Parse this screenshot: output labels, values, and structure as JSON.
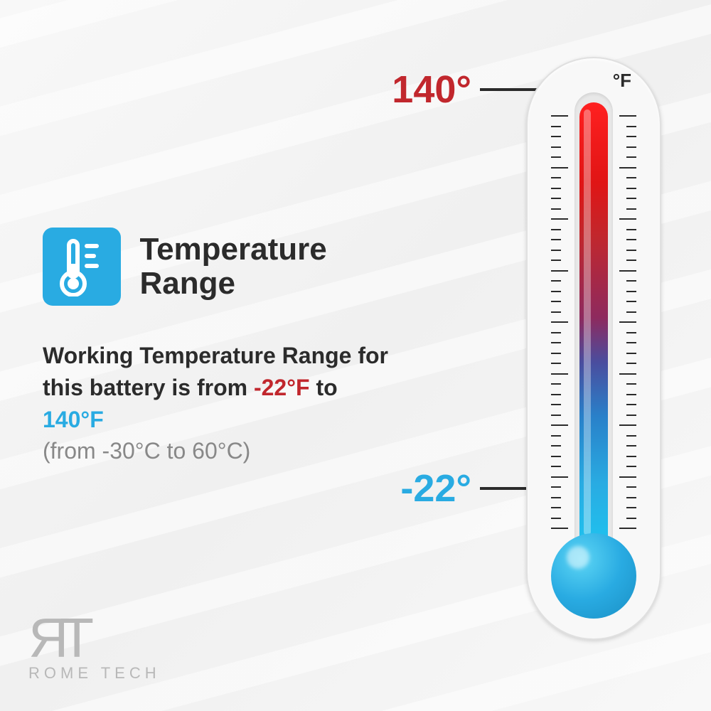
{
  "heading": {
    "line1": "Temperature",
    "line2": "Range"
  },
  "description": {
    "prefix": "Working Temperature Range for this battery is from ",
    "cold_f": "-22°F",
    "mid": " to ",
    "hot_f": "140°F",
    "celsius": "(from -30°C to 60°C)"
  },
  "thermometer": {
    "unit": "°F",
    "hot_label": "140°",
    "cold_label": "-22°",
    "hot_color": "#c1272d",
    "cold_color": "#29abe2",
    "gradient_stops": [
      "#ff2020",
      "#c1272d",
      "#8e2a5e",
      "#4a4d9e",
      "#29abe2",
      "#1ec4f0"
    ],
    "tick_count": 40,
    "major_every": 5
  },
  "icon": {
    "name": "thermometer-icon",
    "bg_color": "#29abe2"
  },
  "logo": {
    "mark": "ЯT",
    "text": "ROME TECH"
  },
  "colors": {
    "text_primary": "#2b2b2b",
    "text_secondary": "#888888",
    "accent_blue": "#29abe2",
    "accent_red": "#c1272d",
    "background": "#f5f5f5"
  }
}
